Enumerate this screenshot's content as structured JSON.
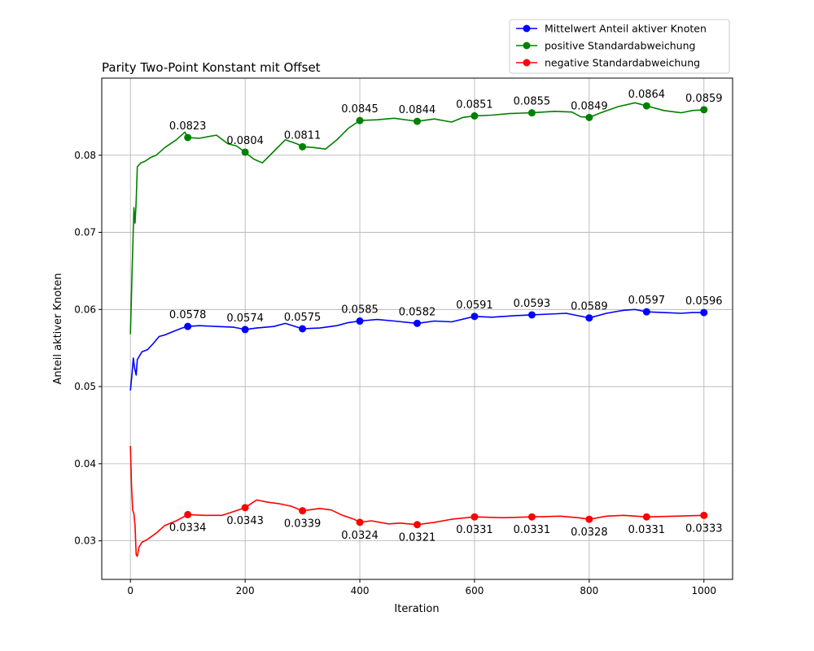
{
  "chart_data": {
    "type": "line",
    "title": "Parity Two-Point Konstant mit Offset",
    "xlabel": "Iteration",
    "ylabel": "Anteil aktiver Knoten",
    "xlim": [
      -50,
      1050
    ],
    "ylim": [
      0.025,
      0.09
    ],
    "xticks": [
      0,
      200,
      400,
      600,
      800,
      1000
    ],
    "xtick_labels": [
      "0",
      "200",
      "400",
      "600",
      "800",
      "1000"
    ],
    "yticks": [
      0.03,
      0.04,
      0.05,
      0.06,
      0.07,
      0.08
    ],
    "ytick_labels": [
      "0.03",
      "0.04",
      "0.05",
      "0.06",
      "0.07",
      "0.08"
    ],
    "grid": true,
    "legend_position": "top-right, above axes",
    "series": [
      {
        "name": "Mittelwert Anteil aktiver Knoten",
        "color": "#0000ff",
        "curve": [
          [
            0,
            0.0495
          ],
          [
            3,
            0.0518
          ],
          [
            5,
            0.0537
          ],
          [
            7,
            0.0525
          ],
          [
            10,
            0.0515
          ],
          [
            12,
            0.0535
          ],
          [
            20,
            0.0545
          ],
          [
            30,
            0.0548
          ],
          [
            40,
            0.0556
          ],
          [
            50,
            0.0565
          ],
          [
            60,
            0.0567
          ],
          [
            70,
            0.057
          ],
          [
            80,
            0.0573
          ],
          [
            90,
            0.0576
          ],
          [
            100,
            0.0578
          ],
          [
            120,
            0.0579
          ],
          [
            150,
            0.0578
          ],
          [
            180,
            0.0577
          ],
          [
            200,
            0.0574
          ],
          [
            220,
            0.0576
          ],
          [
            250,
            0.0578
          ],
          [
            270,
            0.0582
          ],
          [
            300,
            0.0575
          ],
          [
            330,
            0.0576
          ],
          [
            360,
            0.0579
          ],
          [
            380,
            0.0583
          ],
          [
            400,
            0.0585
          ],
          [
            430,
            0.0587
          ],
          [
            460,
            0.0585
          ],
          [
            500,
            0.0582
          ],
          [
            530,
            0.0585
          ],
          [
            560,
            0.0584
          ],
          [
            600,
            0.0591
          ],
          [
            630,
            0.059
          ],
          [
            670,
            0.0592
          ],
          [
            700,
            0.0593
          ],
          [
            730,
            0.0594
          ],
          [
            760,
            0.0595
          ],
          [
            780,
            0.0592
          ],
          [
            800,
            0.0589
          ],
          [
            830,
            0.0595
          ],
          [
            860,
            0.0599
          ],
          [
            880,
            0.06
          ],
          [
            900,
            0.0597
          ],
          [
            930,
            0.0596
          ],
          [
            960,
            0.0595
          ],
          [
            980,
            0.0596
          ],
          [
            1000,
            0.0596
          ]
        ],
        "markers": [
          [
            100,
            0.0578
          ],
          [
            200,
            0.0574
          ],
          [
            300,
            0.0575
          ],
          [
            400,
            0.0585
          ],
          [
            500,
            0.0582
          ],
          [
            600,
            0.0591
          ],
          [
            700,
            0.0593
          ],
          [
            800,
            0.0589
          ],
          [
            900,
            0.0597
          ],
          [
            1000,
            0.0596
          ]
        ],
        "labels": [
          "0.0578",
          "0.0574",
          "0.0575",
          "0.0585",
          "0.0582",
          "0.0591",
          "0.0593",
          "0.0589",
          "0.0597",
          "0.0596"
        ],
        "label_pos": "above"
      },
      {
        "name": "positive Standardabweichung",
        "color": "#008000",
        "curve": [
          [
            0,
            0.0568
          ],
          [
            3,
            0.065
          ],
          [
            6,
            0.0732
          ],
          [
            8,
            0.0712
          ],
          [
            10,
            0.074
          ],
          [
            12,
            0.0785
          ],
          [
            18,
            0.079
          ],
          [
            25,
            0.0792
          ],
          [
            35,
            0.0797
          ],
          [
            45,
            0.08
          ],
          [
            60,
            0.081
          ],
          [
            80,
            0.082
          ],
          [
            95,
            0.083
          ],
          [
            100,
            0.0823
          ],
          [
            120,
            0.0822
          ],
          [
            150,
            0.0826
          ],
          [
            170,
            0.0815
          ],
          [
            185,
            0.0812
          ],
          [
            200,
            0.0804
          ],
          [
            215,
            0.0795
          ],
          [
            230,
            0.079
          ],
          [
            250,
            0.0805
          ],
          [
            270,
            0.082
          ],
          [
            290,
            0.0815
          ],
          [
            300,
            0.0811
          ],
          [
            320,
            0.081
          ],
          [
            340,
            0.0808
          ],
          [
            360,
            0.082
          ],
          [
            380,
            0.0835
          ],
          [
            400,
            0.0845
          ],
          [
            430,
            0.0846
          ],
          [
            460,
            0.0848
          ],
          [
            500,
            0.0844
          ],
          [
            530,
            0.0847
          ],
          [
            560,
            0.0843
          ],
          [
            580,
            0.0849
          ],
          [
            600,
            0.0851
          ],
          [
            630,
            0.0852
          ],
          [
            660,
            0.0854
          ],
          [
            700,
            0.0855
          ],
          [
            740,
            0.0857
          ],
          [
            770,
            0.0856
          ],
          [
            785,
            0.085
          ],
          [
            800,
            0.0849
          ],
          [
            820,
            0.0855
          ],
          [
            850,
            0.0863
          ],
          [
            880,
            0.0868
          ],
          [
            900,
            0.0864
          ],
          [
            930,
            0.0858
          ],
          [
            960,
            0.0855
          ],
          [
            980,
            0.0858
          ],
          [
            1000,
            0.0859
          ]
        ],
        "markers": [
          [
            100,
            0.0823
          ],
          [
            200,
            0.0804
          ],
          [
            300,
            0.0811
          ],
          [
            400,
            0.0845
          ],
          [
            500,
            0.0844
          ],
          [
            600,
            0.0851
          ],
          [
            700,
            0.0855
          ],
          [
            800,
            0.0849
          ],
          [
            900,
            0.0864
          ],
          [
            1000,
            0.0859
          ]
        ],
        "labels": [
          "0.0823",
          "0.0804",
          "0.0811",
          "0.0845",
          "0.0844",
          "0.0851",
          "0.0855",
          "0.0849",
          "0.0864",
          "0.0859"
        ],
        "label_pos": "above"
      },
      {
        "name": "negative Standardabweichung",
        "color": "#ff0000",
        "curve": [
          [
            0,
            0.0423
          ],
          [
            2,
            0.037
          ],
          [
            4,
            0.034
          ],
          [
            6,
            0.0335
          ],
          [
            8,
            0.032
          ],
          [
            10,
            0.0282
          ],
          [
            12,
            0.028
          ],
          [
            15,
            0.0292
          ],
          [
            20,
            0.0298
          ],
          [
            30,
            0.0302
          ],
          [
            45,
            0.031
          ],
          [
            60,
            0.032
          ],
          [
            80,
            0.0326
          ],
          [
            100,
            0.0334
          ],
          [
            130,
            0.0333
          ],
          [
            160,
            0.0333
          ],
          [
            180,
            0.0338
          ],
          [
            200,
            0.0343
          ],
          [
            210,
            0.0348
          ],
          [
            220,
            0.0353
          ],
          [
            240,
            0.035
          ],
          [
            260,
            0.0348
          ],
          [
            280,
            0.0345
          ],
          [
            300,
            0.0339
          ],
          [
            330,
            0.0342
          ],
          [
            350,
            0.034
          ],
          [
            370,
            0.0333
          ],
          [
            390,
            0.0328
          ],
          [
            400,
            0.0324
          ],
          [
            420,
            0.0326
          ],
          [
            450,
            0.0322
          ],
          [
            470,
            0.0323
          ],
          [
            500,
            0.0321
          ],
          [
            530,
            0.0324
          ],
          [
            560,
            0.0328
          ],
          [
            600,
            0.0331
          ],
          [
            650,
            0.033
          ],
          [
            700,
            0.0331
          ],
          [
            750,
            0.0332
          ],
          [
            780,
            0.033
          ],
          [
            800,
            0.0328
          ],
          [
            830,
            0.0332
          ],
          [
            860,
            0.0333
          ],
          [
            900,
            0.0331
          ],
          [
            950,
            0.0332
          ],
          [
            1000,
            0.0333
          ]
        ],
        "markers": [
          [
            100,
            0.0334
          ],
          [
            200,
            0.0343
          ],
          [
            300,
            0.0339
          ],
          [
            400,
            0.0324
          ],
          [
            500,
            0.0321
          ],
          [
            600,
            0.0331
          ],
          [
            700,
            0.0331
          ],
          [
            800,
            0.0328
          ],
          [
            900,
            0.0331
          ],
          [
            1000,
            0.0333
          ]
        ],
        "labels": [
          "0.0334",
          "0.0343",
          "0.0339",
          "0.0324",
          "0.0321",
          "0.0331",
          "0.0331",
          "0.0328",
          "0.0331",
          "0.0333"
        ],
        "label_pos": "below"
      }
    ]
  }
}
